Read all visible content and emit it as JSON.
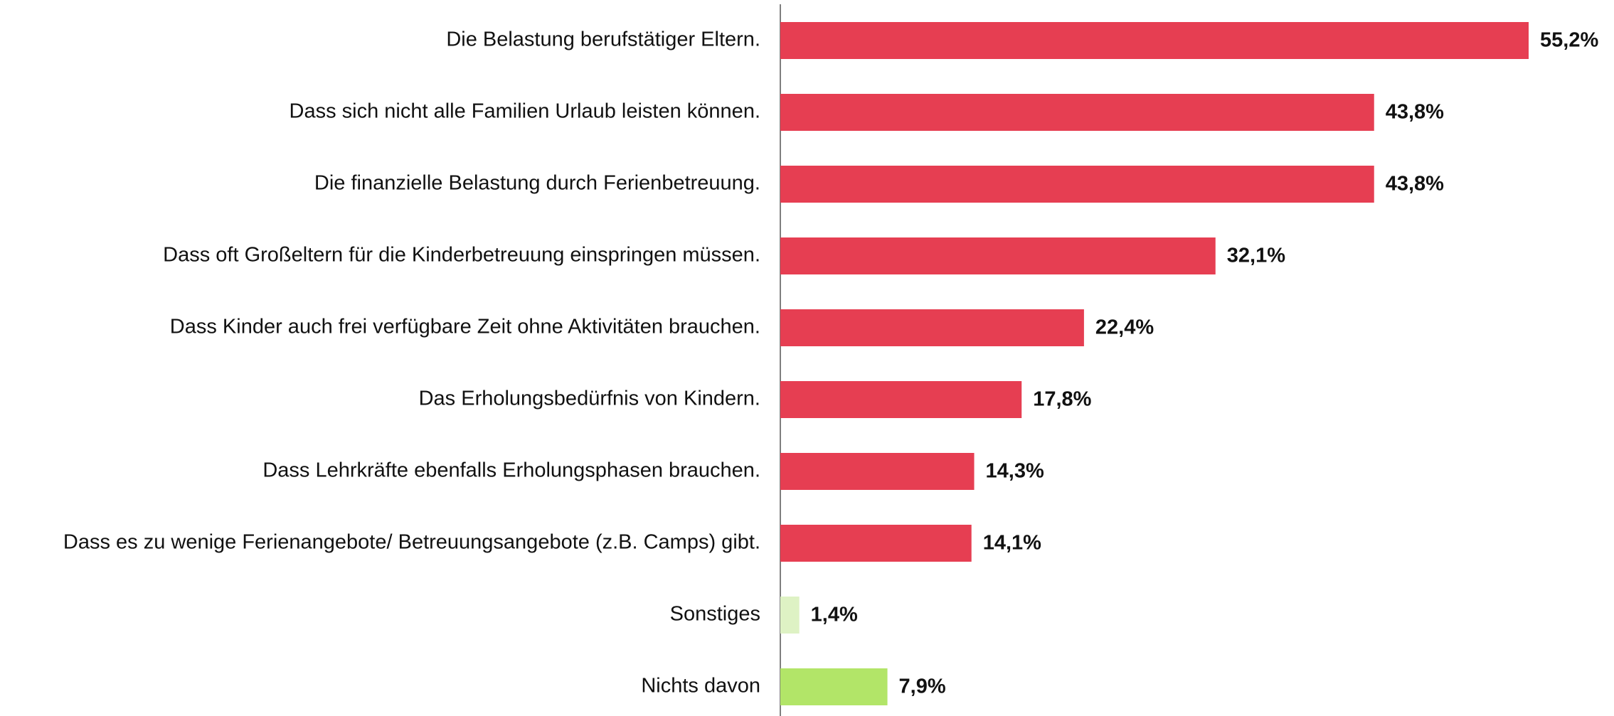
{
  "chart_data": {
    "type": "bar",
    "orientation": "horizontal",
    "categories": [
      "Die Belastung berufstätiger Eltern.",
      "Dass sich nicht alle Familien Urlaub leisten können.",
      "Die finanzielle Belastung durch Ferienbetreuung.",
      "Dass oft Großeltern für die Kinderbetreuung einspringen müssen.",
      "Dass Kinder auch frei verfügbare Zeit ohne Aktivitäten brauchen.",
      "Das Erholungsbedürfnis von Kindern.",
      "Dass Lehrkräfte ebenfalls Erholungsphasen brauchen.",
      "Dass es zu wenige Ferienangebote/ Betreuungsangebote (z.B. Camps) gibt.",
      "Sonstiges",
      "Nichts davon"
    ],
    "values": [
      55.2,
      43.8,
      43.8,
      32.1,
      22.4,
      17.8,
      14.3,
      14.1,
      1.4,
      7.9
    ],
    "value_labels": [
      "55,2%",
      "43,8%",
      "43,8%",
      "32,1%",
      "22,4%",
      "17,8%",
      "14,3%",
      "14,1%",
      "1,4%",
      "7,9%"
    ],
    "colors": [
      "#e63e52",
      "#e63e52",
      "#e63e52",
      "#e63e52",
      "#e63e52",
      "#e63e52",
      "#e63e52",
      "#e63e52",
      "#def2c4",
      "#b2e568"
    ]
  }
}
